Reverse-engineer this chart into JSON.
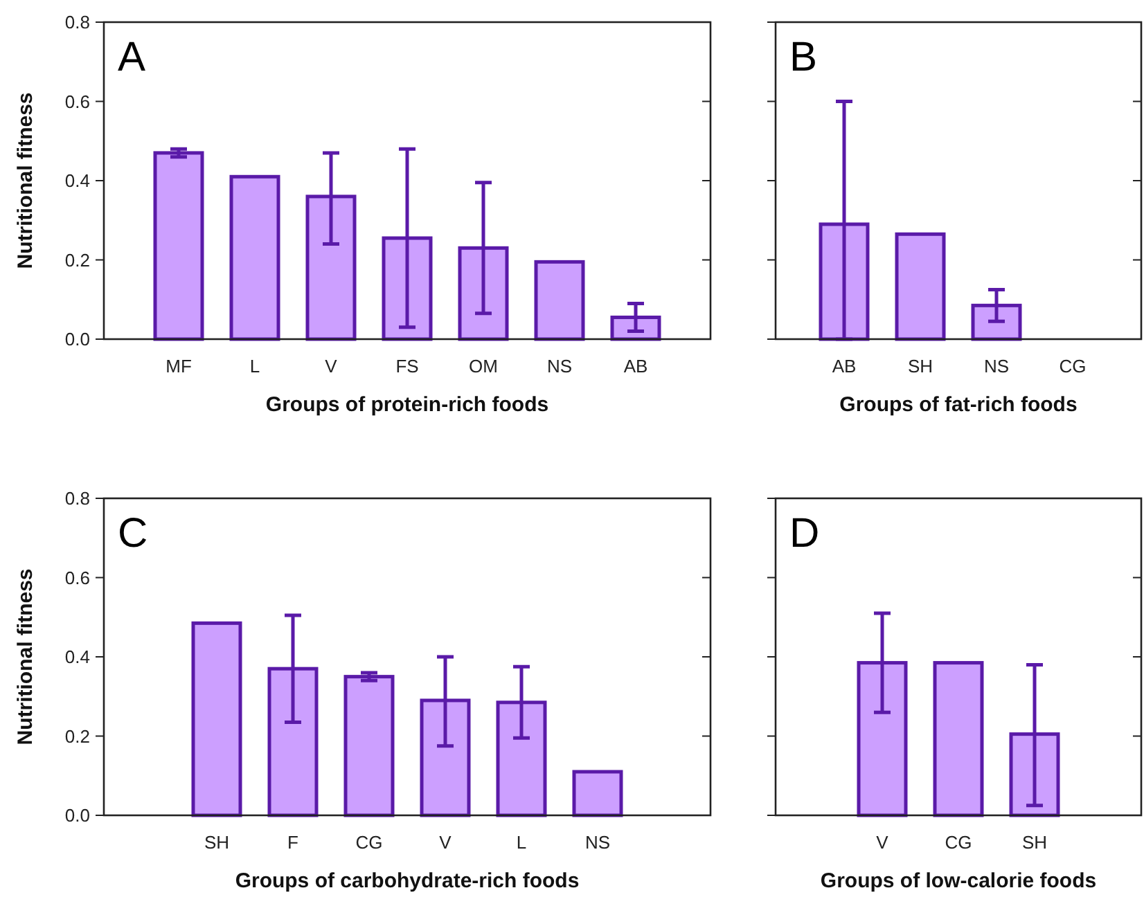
{
  "chart_data": [
    {
      "type": "bar",
      "title": "A",
      "xlabel": "Groups of protein-rich foods",
      "ylabel": "Nutritional fitness",
      "categories": [
        "MF",
        "L",
        "V",
        "FS",
        "OM",
        "NS",
        "AB"
      ],
      "values": [
        0.47,
        0.41,
        0.36,
        0.255,
        0.23,
        0.195,
        0.055
      ],
      "errors": [
        [
          0.46,
          0.48
        ],
        null,
        [
          0.24,
          0.47
        ],
        [
          0.03,
          0.48
        ],
        [
          0.065,
          0.395
        ],
        null,
        [
          0.02,
          0.09
        ]
      ],
      "color": "#cc9fff",
      "ylim": [
        0,
        0.8
      ],
      "yticks": [
        {
          "value": 0,
          "label": "0.0"
        },
        {
          "value": 0.2,
          "label": "0.2"
        },
        {
          "value": 0.4,
          "label": "0.4"
        },
        {
          "value": 0.6,
          "label": "0.6"
        },
        {
          "value": 0.8,
          "label": "0.8"
        }
      ],
      "grid": false
    },
    {
      "type": "bar",
      "title": "B",
      "xlabel": "Groups of fat-rich foods",
      "categories": [
        "AB",
        "SH",
        "NS",
        "CG"
      ],
      "values": [
        0.29,
        0.265,
        0.085,
        0
      ],
      "errors": [
        [
          0,
          0.6
        ],
        null,
        [
          0.045,
          0.125
        ],
        null
      ],
      "color": "#cc9fff",
      "ylim": [
        0,
        0.8
      ],
      "yticks": [
        {
          "value": 0,
          "label": null
        },
        {
          "value": 0.2,
          "label": null
        },
        {
          "value": 0.4,
          "label": null
        },
        {
          "value": 0.6,
          "label": null
        },
        {
          "value": 0.8,
          "label": null
        }
      ],
      "tick_labels": "x",
      "grid": false
    },
    {
      "type": "bar",
      "title": "C",
      "xlabel": "Groups of carbohydrate-rich foods",
      "ylabel": "Nutritional fitness",
      "categories": [
        "SH",
        "F",
        "CG",
        "V",
        "L",
        "NS"
      ],
      "values": [
        0.485,
        0.37,
        0.35,
        0.29,
        0.285,
        0.11
      ],
      "errors": [
        null,
        [
          0.235,
          0.505
        ],
        [
          0.34,
          0.36
        ],
        [
          0.175,
          0.4
        ],
        [
          0.195,
          0.375
        ],
        null
      ],
      "color": "#cc9fff",
      "ylim": [
        0,
        0.8
      ],
      "yticks": [
        {
          "value": 0,
          "label": "0.0"
        },
        {
          "value": 0.2,
          "label": "0.2"
        },
        {
          "value": 0.4,
          "label": "0.4"
        },
        {
          "value": 0.6,
          "label": "0.6"
        },
        {
          "value": 0.8,
          "label": "0.8"
        }
      ],
      "grid": false
    },
    {
      "type": "bar",
      "title": "D",
      "xlabel": "Groups of low-calorie foods",
      "categories": [
        "V",
        "CG",
        "SH"
      ],
      "values": [
        0.385,
        0.385,
        0.205
      ],
      "errors": [
        [
          0.26,
          0.51
        ],
        null,
        [
          0.025,
          0.38
        ]
      ],
      "color": "#cc9fff",
      "ylim": [
        0,
        0.8
      ],
      "yticks": [
        {
          "value": 0,
          "label": null
        },
        {
          "value": 0.2,
          "label": null
        },
        {
          "value": 0.4,
          "label": null
        },
        {
          "value": 0.6,
          "label": null
        },
        {
          "value": 0.8,
          "label": null
        }
      ],
      "tick_labels": "x",
      "grid": false
    }
  ]
}
